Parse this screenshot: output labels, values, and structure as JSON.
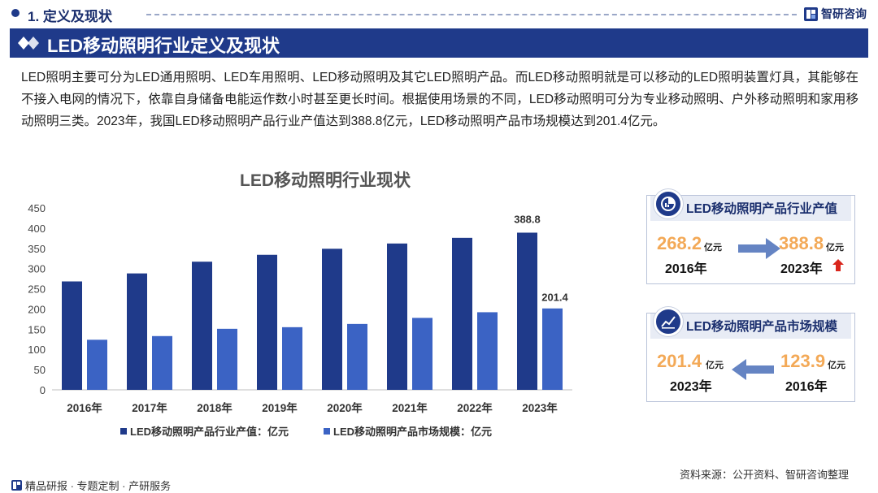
{
  "header": {
    "section": "1. 定义及现状",
    "brand": "智研咨询"
  },
  "title": "LED移动照明行业定义及现状",
  "intro": "LED照明主要可分为LED通用照明、LED车用照明、LED移动照明及其它LED照明产品。而LED移动照明就是可以移动的LED照明装置灯具，其能够在不接入电网的情况下，依靠自身储备电能运作数小时甚至更长时间。根据使用场景的不同，LED移动照明可分为专业移动照明、户外移动照明和家用移动照明三类。2023年，我国LED移动照明产品行业产值达到388.8亿元，LED移动照明产品市场规模达到201.4亿元。",
  "chart_data": {
    "type": "bar",
    "title": "LED移动照明行业现状",
    "categories": [
      "2016年",
      "2017年",
      "2018年",
      "2019年",
      "2020年",
      "2021年",
      "2022年",
      "2023年"
    ],
    "series": [
      {
        "name": "LED移动照明产品行业产值：亿元",
        "values": [
          268.2,
          288,
          317,
          334,
          349,
          362,
          376,
          388.8
        ],
        "color": "#1f3a8a"
      },
      {
        "name": "LED移动照明产品市场规模：亿元",
        "values": [
          123.9,
          133,
          151,
          155,
          163,
          178,
          192,
          201.4
        ],
        "color": "#3b63c4"
      }
    ],
    "yticks": [
      "0",
      "50",
      "100",
      "150",
      "200",
      "250",
      "300",
      "350",
      "400",
      "450"
    ],
    "ylim": [
      0,
      450
    ],
    "labels": {
      "output_last": "388.8",
      "market_last": "201.4"
    },
    "xlabel": "",
    "ylabel": "",
    "legend": "bottom",
    "grid": false
  },
  "card1": {
    "title": "LED移动照明产品行业产值",
    "left_value": "268.2",
    "left_unit": "亿元",
    "left_year": "2016年",
    "right_value": "388.8",
    "right_unit": "亿元",
    "right_year": "2023年"
  },
  "card2": {
    "title": "LED移动照明产品市场规模",
    "left_value": "201.4",
    "left_unit": "亿元",
    "left_year": "2023年",
    "right_value": "123.9",
    "right_unit": "亿元",
    "right_year": "2016年"
  },
  "footer": {
    "left": "精品研报 · 专题定制 · 产研服务",
    "source": "资料来源：公开资料、智研咨询整理"
  },
  "colors": {
    "navy": "#1f3a8a",
    "accent": "#f3a957",
    "up": "#d9261c"
  }
}
